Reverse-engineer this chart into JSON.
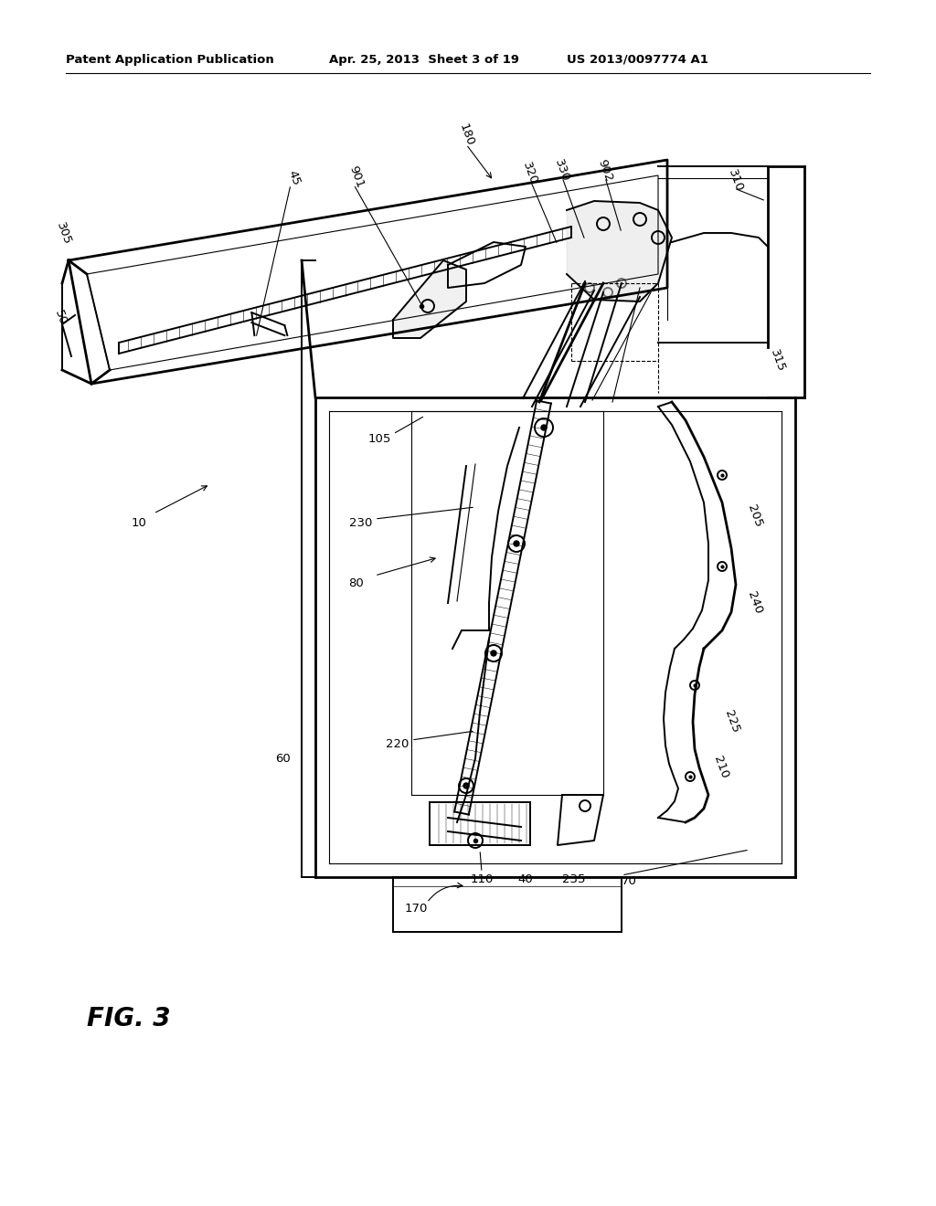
{
  "bg_color": "#ffffff",
  "header_left": "Patent Application Publication",
  "header_mid": "Apr. 25, 2013  Sheet 3 of 19",
  "header_right": "US 2013/0097774 A1",
  "fig_label": "FIG. 3"
}
